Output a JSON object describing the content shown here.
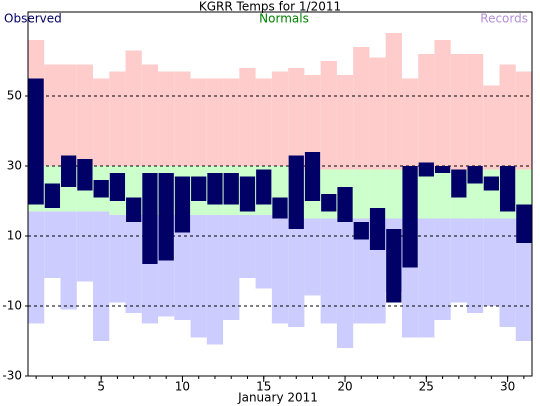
{
  "chart_data": {
    "type": "range-bar",
    "title": "KGRR Temps for 1/2011",
    "x_label": "January 2011",
    "x": [
      1,
      2,
      3,
      4,
      5,
      6,
      7,
      8,
      9,
      10,
      11,
      12,
      13,
      14,
      15,
      16,
      17,
      18,
      19,
      20,
      21,
      22,
      23,
      24,
      25,
      26,
      27,
      28,
      29,
      30,
      31
    ],
    "xlim": [
      0.5,
      31.5
    ],
    "xticks": [
      5,
      10,
      15,
      20,
      25,
      30
    ],
    "ylim": [
      -30,
      74
    ],
    "yticks": [
      -30,
      -10,
      10,
      30,
      50
    ],
    "grid": true,
    "series": [
      {
        "name": "Observed",
        "color": "#000066",
        "high": [
          55,
          25,
          33,
          32,
          26,
          28,
          21,
          28,
          28,
          27,
          27,
          28,
          28,
          27,
          29,
          21,
          33,
          34,
          22,
          24,
          14,
          18,
          12,
          30,
          31,
          30,
          29,
          30,
          27,
          30,
          19
        ],
        "low": [
          19,
          18,
          24,
          23,
          21,
          20,
          14,
          2,
          3,
          11,
          20,
          19,
          19,
          17,
          19,
          15,
          12,
          20,
          17,
          14,
          9,
          6,
          -9,
          1,
          27,
          28,
          21,
          25,
          23,
          17,
          8
        ]
      },
      {
        "name": "Normals",
        "color": "#008000",
        "fill": "#ccffcc",
        "high": [
          30,
          30,
          30,
          30,
          30,
          30,
          30,
          30,
          30,
          30,
          30,
          30,
          30,
          30,
          30,
          30,
          29,
          29,
          29,
          29,
          29,
          29,
          29,
          29,
          29,
          29,
          29,
          29,
          29,
          29,
          29
        ],
        "low": [
          17,
          17,
          17,
          17,
          17,
          16,
          16,
          16,
          16,
          16,
          16,
          16,
          16,
          16,
          16,
          16,
          15,
          15,
          15,
          15,
          15,
          15,
          15,
          15,
          15,
          15,
          15,
          15,
          15,
          15,
          15
        ]
      },
      {
        "name": "Records",
        "color": "#b48ed8",
        "fill_high": "#ffcccc",
        "fill_low": "#ccccff",
        "high": [
          66,
          59,
          59,
          59,
          55,
          57,
          63,
          59,
          57,
          57,
          55,
          55,
          55,
          58,
          55,
          57,
          58,
          56,
          60,
          56,
          64,
          61,
          68,
          55,
          62,
          66,
          62,
          62,
          53,
          59,
          57
        ],
        "low": [
          -15,
          -2,
          -11,
          -3,
          -20,
          -9,
          -12,
          -15,
          -13,
          -14,
          -19,
          -21,
          -14,
          -2,
          -5,
          -15,
          -16,
          -7,
          -15,
          -22,
          -15,
          -15,
          -6,
          -19,
          -19,
          -14,
          -9,
          -12,
          -10,
          -16,
          -20
        ]
      }
    ]
  }
}
